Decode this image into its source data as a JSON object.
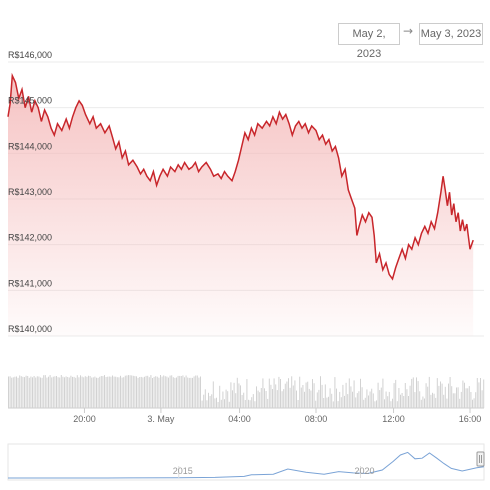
{
  "range_selector": {
    "from": "May 2, 2023",
    "arrow": "→",
    "to": "May 3, 2023"
  },
  "colors": {
    "line": "#c8262b",
    "area_top": "#f4b8b8",
    "volume": "#d2d2d2",
    "navigator_line": "#7aa3d6",
    "grid": "#ebebeb"
  },
  "chart_data": {
    "type": "area",
    "title": "",
    "xlabel": "",
    "ylabel": "",
    "ylim": [
      140000,
      146000
    ],
    "xlim": [
      0,
      22.1
    ],
    "y_ticks": [
      {
        "value": 146000,
        "label": "R$146,000"
      },
      {
        "value": 145000,
        "label": "R$145,000"
      },
      {
        "value": 144000,
        "label": "R$144,000"
      },
      {
        "value": 143000,
        "label": "R$143,000"
      },
      {
        "value": 142000,
        "label": "R$142,000"
      },
      {
        "value": 141000,
        "label": "R$141,000"
      },
      {
        "value": 140000,
        "label": "R$140,000"
      }
    ],
    "x_ticks": [
      {
        "value": 3.55,
        "label": "20:00"
      },
      {
        "value": 7.1,
        "label": "3. May"
      },
      {
        "value": 10.75,
        "label": "04:00"
      },
      {
        "value": 14.3,
        "label": "08:00"
      },
      {
        "value": 17.9,
        "label": "12:00"
      },
      {
        "value": 21.45,
        "label": "16:00"
      }
    ],
    "series": [
      {
        "values": [
          [
            0.0,
            144800
          ],
          [
            0.1,
            145100
          ],
          [
            0.2,
            145700
          ],
          [
            0.35,
            145550
          ],
          [
            0.5,
            145200
          ],
          [
            0.65,
            145400
          ],
          [
            0.8,
            145000
          ],
          [
            0.95,
            145250
          ],
          [
            1.1,
            144900
          ],
          [
            1.25,
            145150
          ],
          [
            1.4,
            145000
          ],
          [
            1.55,
            144700
          ],
          [
            1.7,
            144950
          ],
          [
            1.85,
            144800
          ],
          [
            2.0,
            144550
          ],
          [
            2.15,
            144400
          ],
          [
            2.3,
            144650
          ],
          [
            2.5,
            144500
          ],
          [
            2.7,
            144750
          ],
          [
            2.85,
            144550
          ],
          [
            3.0,
            144800
          ],
          [
            3.15,
            145000
          ],
          [
            3.3,
            145150
          ],
          [
            3.45,
            145050
          ],
          [
            3.6,
            144850
          ],
          [
            3.8,
            144650
          ],
          [
            3.95,
            144800
          ],
          [
            4.1,
            144550
          ],
          [
            4.3,
            144650
          ],
          [
            4.5,
            144450
          ],
          [
            4.7,
            144600
          ],
          [
            4.85,
            144350
          ],
          [
            5.0,
            144100
          ],
          [
            5.15,
            144250
          ],
          [
            5.3,
            143900
          ],
          [
            5.45,
            144050
          ],
          [
            5.6,
            143750
          ],
          [
            5.8,
            143850
          ],
          [
            6.0,
            143700
          ],
          [
            6.15,
            143550
          ],
          [
            6.3,
            143650
          ],
          [
            6.45,
            143500
          ],
          [
            6.6,
            143400
          ],
          [
            6.75,
            143600
          ],
          [
            6.9,
            143300
          ],
          [
            7.05,
            143500
          ],
          [
            7.2,
            143650
          ],
          [
            7.4,
            143500
          ],
          [
            7.55,
            143700
          ],
          [
            7.75,
            143600
          ],
          [
            7.9,
            143750
          ],
          [
            8.05,
            143650
          ],
          [
            8.2,
            143800
          ],
          [
            8.4,
            143650
          ],
          [
            8.55,
            143700
          ],
          [
            8.7,
            143800
          ],
          [
            8.85,
            143600
          ],
          [
            9.0,
            143700
          ],
          [
            9.2,
            143800
          ],
          [
            9.4,
            143650
          ],
          [
            9.55,
            143500
          ],
          [
            9.75,
            143550
          ],
          [
            9.9,
            143450
          ],
          [
            10.05,
            143600
          ],
          [
            10.2,
            143500
          ],
          [
            10.4,
            143400
          ],
          [
            10.55,
            143600
          ],
          [
            10.7,
            143850
          ],
          [
            10.85,
            144150
          ],
          [
            11.0,
            144450
          ],
          [
            11.15,
            144300
          ],
          [
            11.3,
            144550
          ],
          [
            11.45,
            144400
          ],
          [
            11.6,
            144650
          ],
          [
            11.8,
            144550
          ],
          [
            12.0,
            144700
          ],
          [
            12.15,
            144600
          ],
          [
            12.3,
            144800
          ],
          [
            12.45,
            144650
          ],
          [
            12.6,
            144900
          ],
          [
            12.75,
            144750
          ],
          [
            12.9,
            144850
          ],
          [
            13.05,
            144650
          ],
          [
            13.2,
            144400
          ],
          [
            13.35,
            144600
          ],
          [
            13.5,
            144700
          ],
          [
            13.65,
            144550
          ],
          [
            13.8,
            144650
          ],
          [
            13.95,
            144450
          ],
          [
            14.1,
            144600
          ],
          [
            14.3,
            144500
          ],
          [
            14.45,
            144300
          ],
          [
            14.6,
            144400
          ],
          [
            14.75,
            144200
          ],
          [
            14.9,
            144300
          ],
          [
            15.05,
            144050
          ],
          [
            15.2,
            144150
          ],
          [
            15.35,
            143900
          ],
          [
            15.5,
            143500
          ],
          [
            15.65,
            143650
          ],
          [
            15.8,
            143200
          ],
          [
            15.95,
            143000
          ],
          [
            16.1,
            142800
          ],
          [
            16.2,
            142200
          ],
          [
            16.3,
            142400
          ],
          [
            16.45,
            142650
          ],
          [
            16.6,
            142500
          ],
          [
            16.75,
            142700
          ],
          [
            16.9,
            142600
          ],
          [
            17.0,
            142200
          ],
          [
            17.1,
            141600
          ],
          [
            17.25,
            141800
          ],
          [
            17.4,
            141450
          ],
          [
            17.55,
            141600
          ],
          [
            17.7,
            141350
          ],
          [
            17.85,
            141250
          ],
          [
            18.0,
            141500
          ],
          [
            18.15,
            141700
          ],
          [
            18.3,
            141900
          ],
          [
            18.45,
            141700
          ],
          [
            18.6,
            142000
          ],
          [
            18.75,
            141900
          ],
          [
            18.9,
            142150
          ],
          [
            19.05,
            142000
          ],
          [
            19.2,
            142250
          ],
          [
            19.35,
            142400
          ],
          [
            19.5,
            142250
          ],
          [
            19.65,
            142500
          ],
          [
            19.8,
            142350
          ],
          [
            19.95,
            142700
          ],
          [
            20.1,
            143150
          ],
          [
            20.2,
            143500
          ],
          [
            20.3,
            143200
          ],
          [
            20.4,
            142850
          ],
          [
            20.5,
            143150
          ],
          [
            20.6,
            142650
          ],
          [
            20.7,
            142900
          ],
          [
            20.8,
            142500
          ],
          [
            20.9,
            142700
          ],
          [
            21.0,
            142300
          ],
          [
            21.1,
            142550
          ],
          [
            21.2,
            142300
          ],
          [
            21.3,
            142450
          ],
          [
            21.45,
            141900
          ],
          [
            21.6,
            142100
          ]
        ]
      }
    ],
    "navigator": {
      "labels": [
        {
          "value": 2015,
          "label": "2015"
        },
        {
          "value": 2020,
          "label": "2020"
        }
      ]
    }
  }
}
